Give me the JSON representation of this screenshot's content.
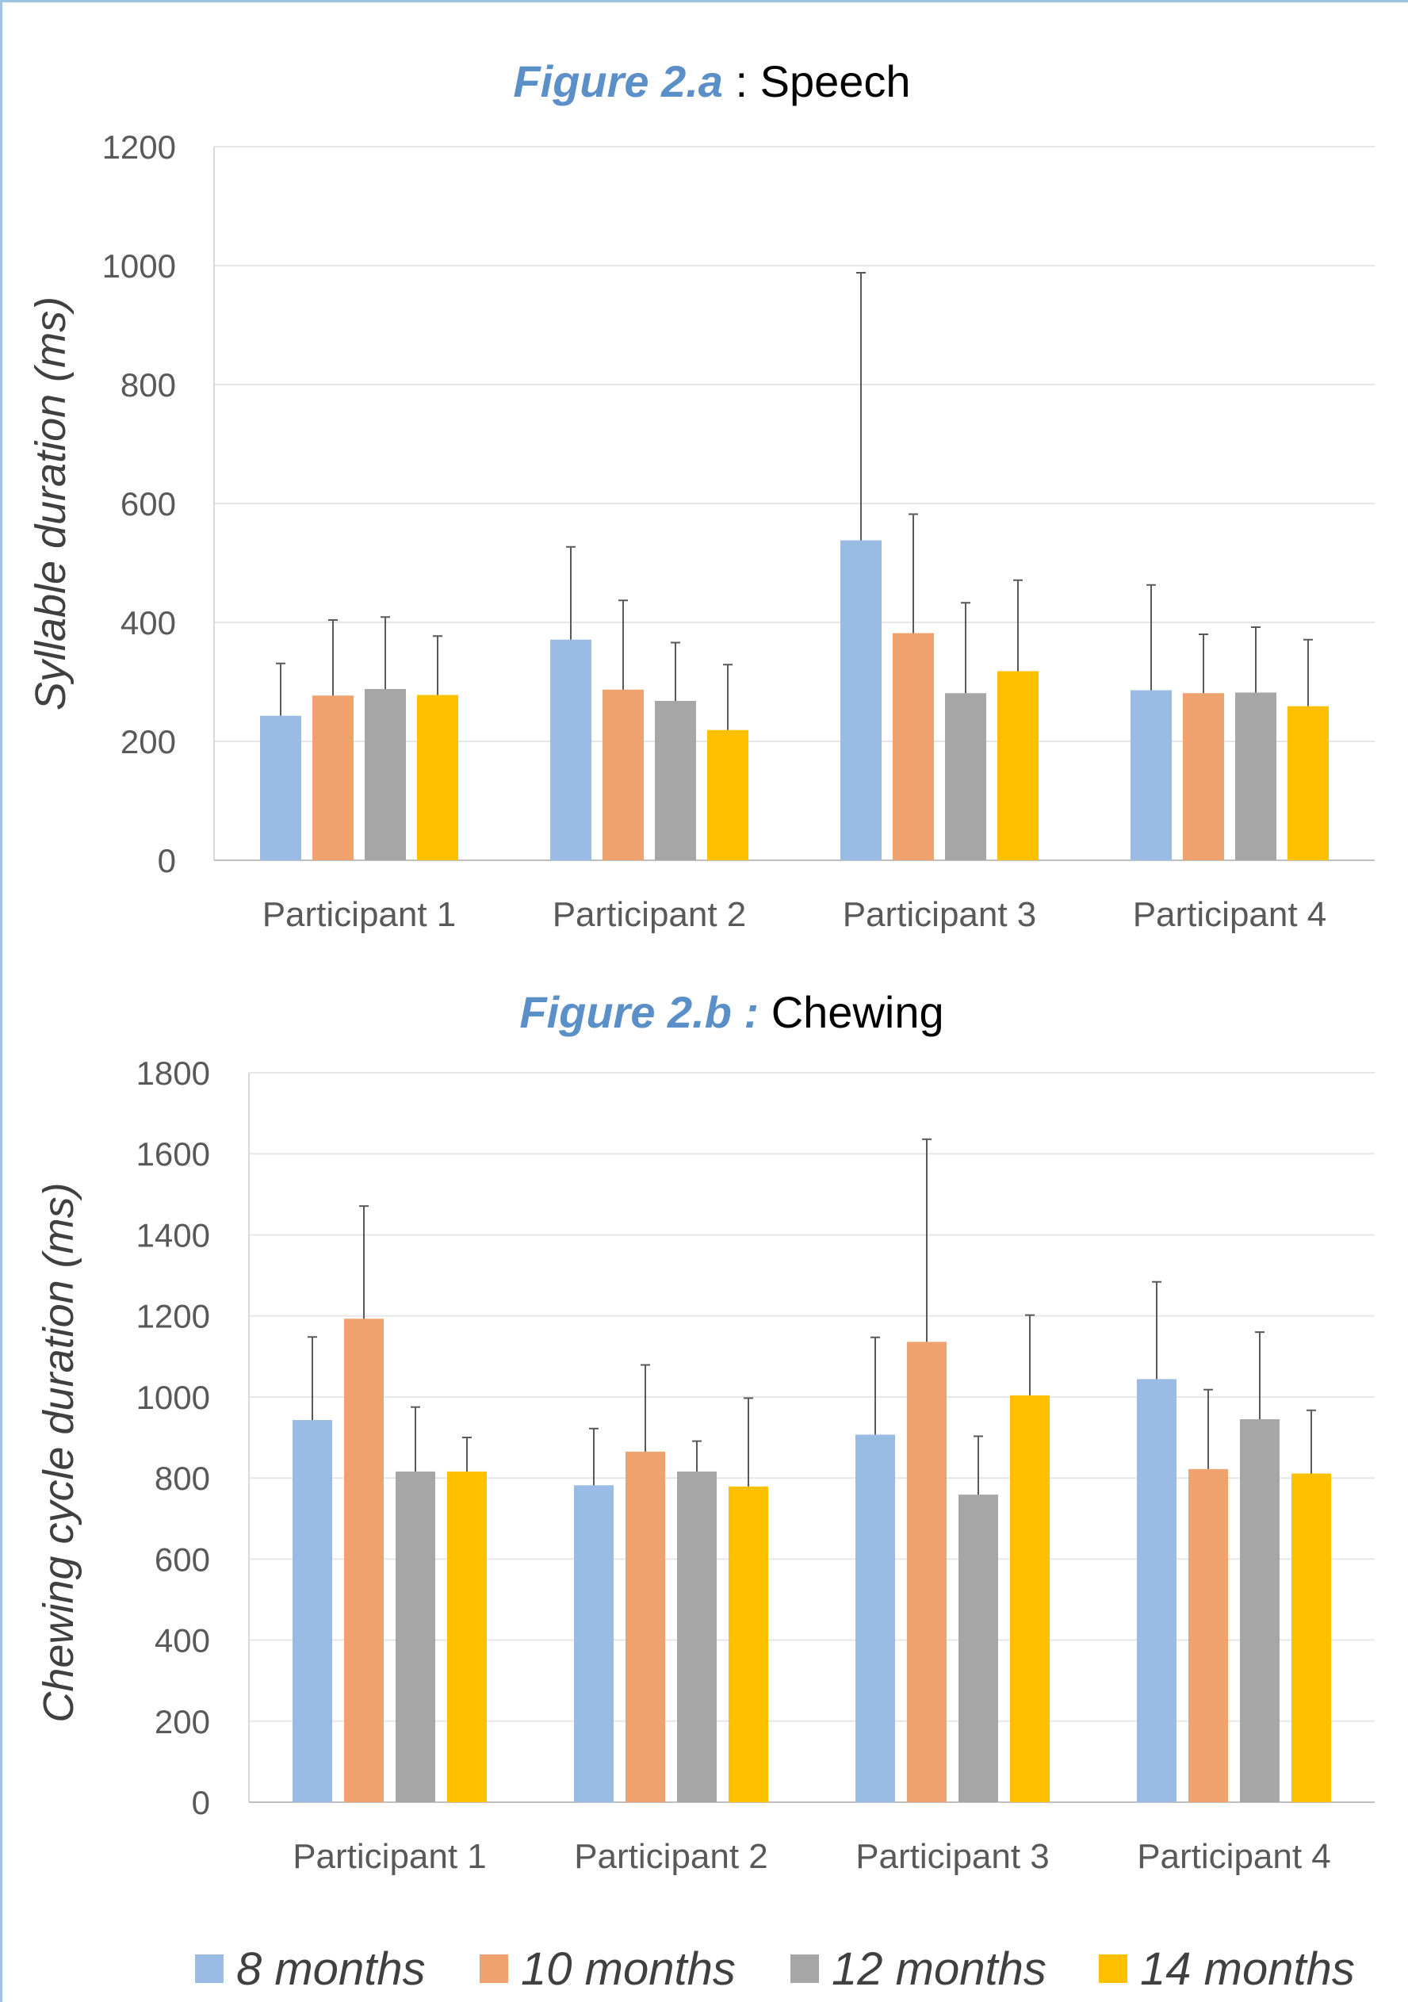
{
  "colors": [
    "#9abce4",
    "#f0a26e",
    "#a6a6a6",
    "#ffc000"
  ],
  "legend": [
    "8 months",
    "10 months",
    "12 months",
    "14 months"
  ],
  "chart_data": [
    {
      "type": "bar",
      "title_prefix": "Figure 2.a",
      "title": " : Speech",
      "ylabel": "Syllable duration (ms)",
      "ylim": [
        0,
        1200
      ],
      "yticks": [
        0,
        200,
        400,
        600,
        800,
        1000,
        1200
      ],
      "grid": true,
      "categories": [
        "Participant 1",
        "Participant 2",
        "Participant 3",
        "Participant 4"
      ],
      "series": [
        {
          "name": "8 months",
          "values": [
            243,
            371,
            538,
            286
          ],
          "error_top": [
            331,
            527,
            988,
            463
          ]
        },
        {
          "name": "10 months",
          "values": [
            277,
            287,
            382,
            281
          ],
          "error_top": [
            404,
            437,
            582,
            380
          ]
        },
        {
          "name": "12 months",
          "values": [
            288,
            268,
            281,
            282
          ],
          "error_top": [
            409,
            366,
            433,
            392
          ]
        },
        {
          "name": "14 months",
          "values": [
            278,
            219,
            318,
            259
          ],
          "error_top": [
            377,
            329,
            471,
            371
          ]
        }
      ]
    },
    {
      "type": "bar",
      "title_prefix": "Figure 2.b :",
      "title": " Chewing",
      "ylabel": "Chewing cycle duration (ms)",
      "ylim": [
        0,
        1800
      ],
      "yticks": [
        0,
        200,
        400,
        600,
        800,
        1000,
        1200,
        1400,
        1600,
        1800
      ],
      "grid": true,
      "categories": [
        "Participant 1",
        "Participant 2",
        "Participant 3",
        "Participant 4"
      ],
      "series": [
        {
          "name": "8 months",
          "values": [
            943,
            782,
            907,
            1044
          ],
          "error_top": [
            1148,
            922,
            1147,
            1284
          ]
        },
        {
          "name": "10 months",
          "values": [
            1193,
            865,
            1136,
            822
          ],
          "error_top": [
            1471,
            1079,
            1636,
            1018
          ]
        },
        {
          "name": "12 months",
          "values": [
            816,
            816,
            759,
            945
          ],
          "error_top": [
            975,
            891,
            903,
            1160
          ]
        },
        {
          "name": "14 months",
          "values": [
            816,
            779,
            1004,
            811
          ],
          "error_top": [
            900,
            997,
            1202,
            967
          ]
        }
      ]
    }
  ]
}
